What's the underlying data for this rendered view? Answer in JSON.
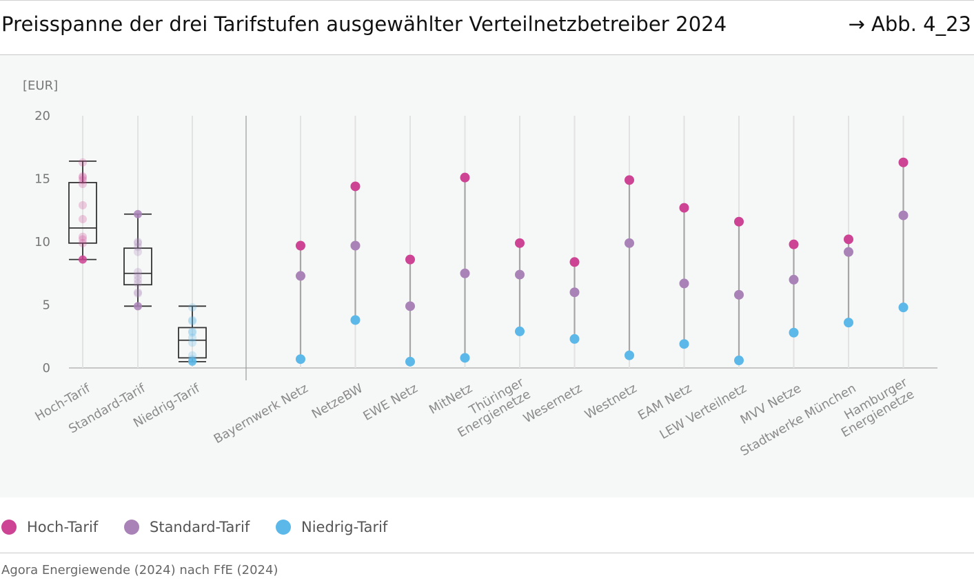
{
  "header": {
    "title": "Preisspanne der drei Tarifstufen ausgewählter Verteilnetzbetreiber 2024",
    "figure_ref": "→ Abb. 4_23"
  },
  "legend": {
    "items": [
      {
        "label": "Hoch-Tarif",
        "color": "#cc4493"
      },
      {
        "label": "Standard-Tarif",
        "color": "#a983b7"
      },
      {
        "label": "Niedrig-Tarif",
        "color": "#5bb8e8"
      }
    ]
  },
  "source": "Agora Energiewende (2024) nach FfE (2024)",
  "chart_data": {
    "type": "scatter",
    "title": "Preisspanne der drei Tarifstufen ausgewählter Verteilnetzbetreiber 2024",
    "ylabel": "[EUR]",
    "ylim": [
      0,
      20
    ],
    "yticks": [
      0,
      5,
      10,
      15,
      20
    ],
    "grid": "vertical",
    "legend_position": "bottom-left",
    "colors": {
      "hoch": "#cc4493",
      "standard": "#a983b7",
      "niedrig": "#5bb8e8",
      "connector": "#a6a6a6",
      "box": "#333333"
    },
    "boxplots": [
      {
        "label": "Hoch-Tarif",
        "tier": "hoch",
        "min": 8.6,
        "q1": 9.9,
        "median": 11.1,
        "q3": 14.7,
        "max": 16.4,
        "points": [
          8.6,
          9.9,
          10.2,
          10.4,
          11.8,
          12.9,
          14.6,
          14.9,
          15.1,
          15.2,
          16.3
        ]
      },
      {
        "label": "Standard-Tarif",
        "tier": "standard",
        "min": 4.9,
        "q1": 6.6,
        "median": 7.5,
        "q3": 9.5,
        "max": 12.2,
        "points": [
          4.9,
          5.9,
          6.0,
          6.7,
          7.0,
          7.3,
          7.6,
          9.2,
          9.6,
          9.9,
          10.0,
          12.2
        ]
      },
      {
        "label": "Niedrig-Tarif",
        "tier": "niedrig",
        "min": 0.5,
        "q1": 0.8,
        "median": 2.2,
        "q3": 3.2,
        "max": 4.9,
        "points": [
          0.5,
          0.6,
          0.7,
          1.0,
          2.0,
          2.4,
          2.8,
          2.9,
          3.7,
          3.8,
          4.8
        ]
      }
    ],
    "categories": [
      "Bayernwerk Netz",
      "NetzeBW",
      "EWE Netz",
      "MitNetz",
      "Thüringer Energienetze",
      "Wesernetz",
      "Westnetz",
      "EAM Netz",
      "LEW Verteilnetz",
      "MVV Netze",
      "Stadtwerke München",
      "Hamburger Energienetze"
    ],
    "category_lines": [
      [
        "Bayernwerk Netz"
      ],
      [
        "NetzeBW"
      ],
      [
        "EWE Netz"
      ],
      [
        "MitNetz"
      ],
      [
        "Thüringer",
        "Energienetze"
      ],
      [
        "Wesernetz"
      ],
      [
        "Westnetz"
      ],
      [
        "EAM Netz"
      ],
      [
        "LEW Verteilnetz"
      ],
      [
        "MVV Netze"
      ],
      [
        "Stadtwerke München"
      ],
      [
        "Hamburger",
        "Energienetze"
      ]
    ],
    "series": [
      {
        "name": "Hoch-Tarif",
        "tier": "hoch",
        "values": [
          9.7,
          14.4,
          8.6,
          15.1,
          9.9,
          8.4,
          14.9,
          12.7,
          11.6,
          9.8,
          10.2,
          16.3
        ]
      },
      {
        "name": "Standard-Tarif",
        "tier": "standard",
        "values": [
          7.3,
          9.7,
          4.9,
          7.5,
          7.4,
          6.0,
          9.9,
          6.7,
          5.8,
          7.0,
          9.2,
          12.1
        ]
      },
      {
        "name": "Niedrig-Tarif",
        "tier": "niedrig",
        "values": [
          0.7,
          3.8,
          0.5,
          0.8,
          2.9,
          2.3,
          1.0,
          1.9,
          0.6,
          2.8,
          3.6,
          4.8
        ]
      }
    ]
  }
}
